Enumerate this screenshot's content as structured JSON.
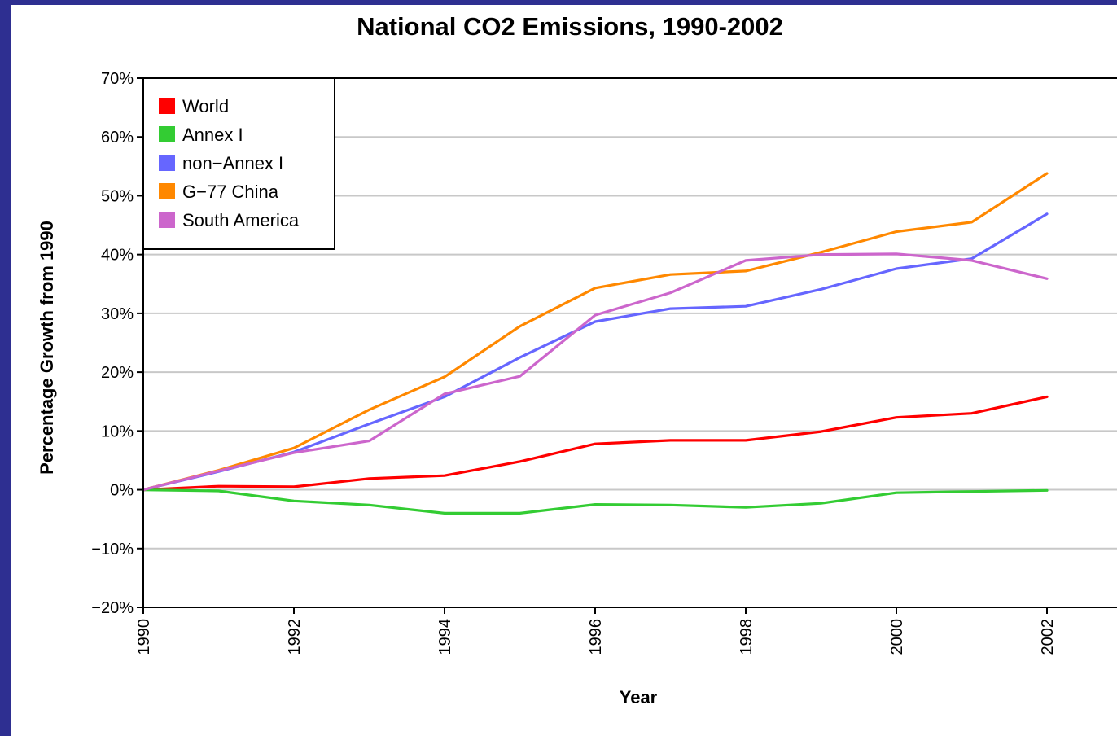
{
  "chart_data": {
    "type": "line",
    "title": "National CO2 Emissions, 1990-2002",
    "xlabel": "Year",
    "ylabel": "Percentage Growth from 1990",
    "x": [
      1990,
      1991,
      1992,
      1993,
      1994,
      1995,
      1996,
      1997,
      1998,
      1999,
      2000,
      2001,
      2002
    ],
    "xticks": [
      "1990",
      "1992",
      "1994",
      "1996",
      "1998",
      "2000",
      "2002"
    ],
    "xlim": [
      1990,
      2003
    ],
    "ylim": [
      -20,
      70
    ],
    "yticks": [
      "70%",
      "60%",
      "50%",
      "40%",
      "30%",
      "20%",
      "10%",
      "0%",
      "−10%",
      "−20%"
    ],
    "ytick_values": [
      70,
      60,
      50,
      40,
      30,
      20,
      10,
      0,
      -10,
      -20
    ],
    "grid": true,
    "legend_position": "top-left",
    "series": [
      {
        "name": "World",
        "color": "#ff0000",
        "values": [
          0,
          0.6,
          0.5,
          1.9,
          2.4,
          4.8,
          7.8,
          8.4,
          8.4,
          9.9,
          12.3,
          13.0,
          15.8
        ]
      },
      {
        "name": "Annex I",
        "color": "#33cc33",
        "values": [
          0,
          -0.2,
          -1.9,
          -2.6,
          -4.0,
          -4.0,
          -2.5,
          -2.6,
          -3.0,
          -2.3,
          -0.5,
          -0.3,
          -0.1
        ]
      },
      {
        "name": "non−Annex I",
        "color": "#6666ff",
        "values": [
          0,
          3.1,
          6.4,
          11.2,
          15.8,
          22.5,
          28.6,
          30.8,
          31.2,
          34.1,
          37.6,
          39.3,
          46.9
        ]
      },
      {
        "name": "G−77 China",
        "color": "#ff8800",
        "values": [
          0,
          3.3,
          7.1,
          13.6,
          19.2,
          27.8,
          34.3,
          36.6,
          37.2,
          40.4,
          43.9,
          45.5,
          53.8
        ]
      },
      {
        "name": "South America",
        "color": "#cc66cc",
        "values": [
          0,
          3.2,
          6.3,
          8.3,
          16.3,
          19.3,
          29.7,
          33.5,
          39.0,
          40.0,
          40.1,
          39.0,
          35.9
        ]
      }
    ]
  }
}
